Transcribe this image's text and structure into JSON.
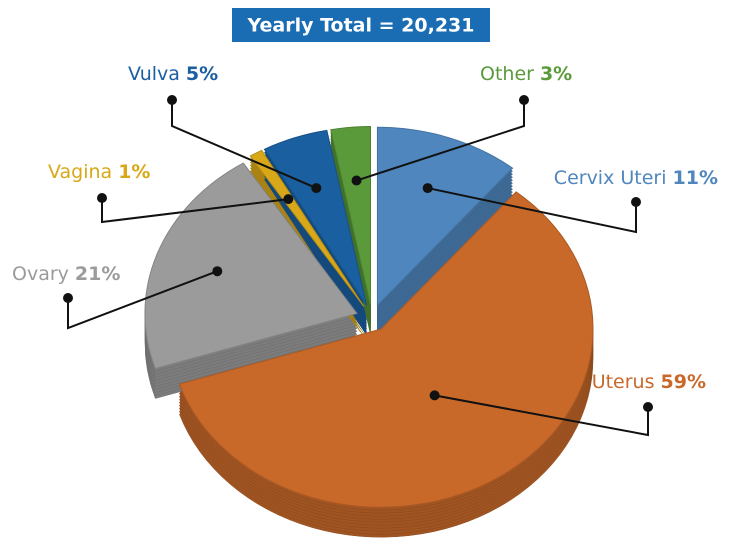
{
  "chart_data": {
    "type": "pie",
    "title": "Yearly Total = 20,231",
    "categories": [
      "Cervix Uteri",
      "Uterus",
      "Ovary",
      "Vagina",
      "Vulva",
      "Other"
    ],
    "values": [
      11,
      59,
      21,
      1,
      5,
      3
    ],
    "value_labels": [
      "11%",
      "59%",
      "21%",
      "1%",
      "5%",
      "3%"
    ],
    "colors": [
      "#4f86bd",
      "#c8692a",
      "#9b9b9b",
      "#d9a818",
      "#1a5fa0",
      "#5a9a3a"
    ]
  }
}
